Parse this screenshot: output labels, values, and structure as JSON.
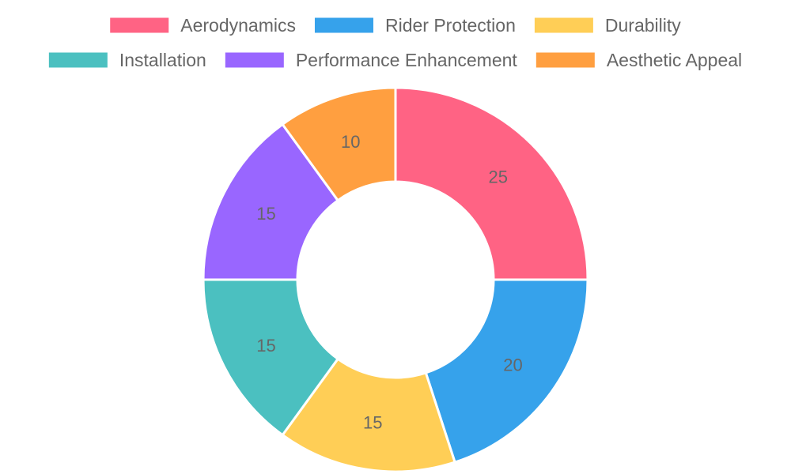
{
  "chart_data": {
    "type": "pie",
    "variant": "doughnut",
    "title": "",
    "legend_position": "top",
    "show_values": true,
    "slices": [
      {
        "label": "Aerodynamics",
        "value": 25,
        "color": "#FF6384"
      },
      {
        "label": "Rider Protection",
        "value": 20,
        "color": "#36A2EB"
      },
      {
        "label": "Durability",
        "value": 15,
        "color": "#FFCE56"
      },
      {
        "label": "Installation",
        "value": 15,
        "color": "#4BC0C0"
      },
      {
        "label": "Performance Enhancement",
        "value": 15,
        "color": "#9966FF"
      },
      {
        "label": "Aesthetic Appeal",
        "value": 10,
        "color": "#FF9F40"
      }
    ]
  }
}
